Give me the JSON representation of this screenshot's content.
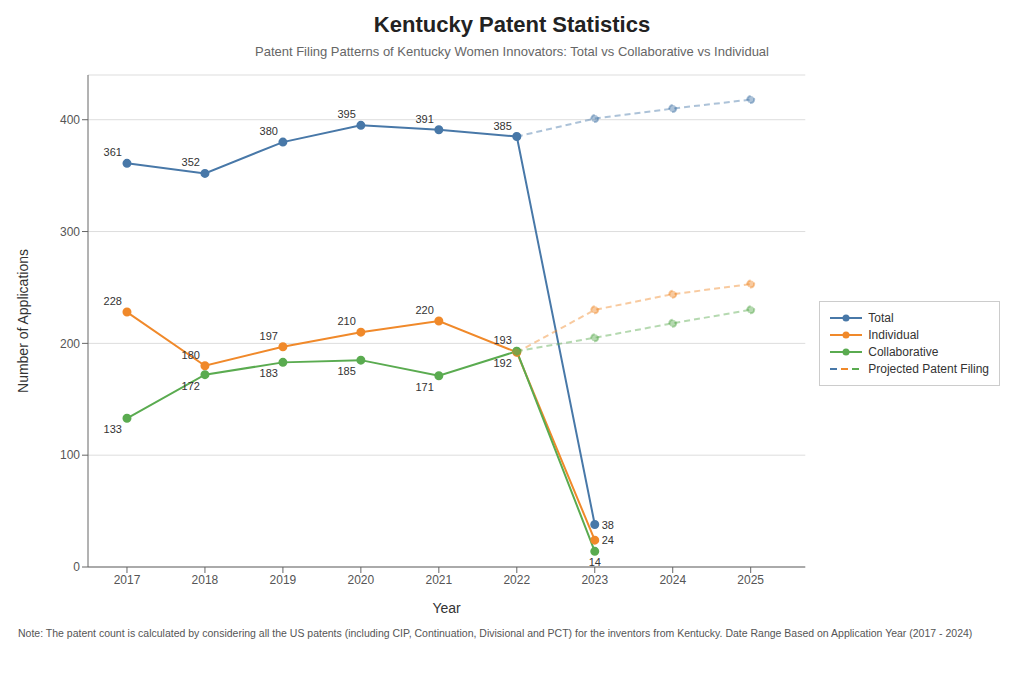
{
  "chart_data": {
    "type": "line",
    "title": "Kentucky Patent Statistics",
    "subtitle": "Patent Filing Patterns of Kentucky Women Innovators: Total vs Collaborative vs Individual",
    "xlabel": "Year",
    "ylabel": "Number of Applications",
    "footnote": "Note: The patent count is calculated by considering all the US patents (including CIP, Continuation, Divisional and PCT) for the inventors from Kentucky. Date Range Based on Application Year (2017 - 2024)",
    "xlim": [
      2016.5,
      2025.7
    ],
    "xticks": [
      2017,
      2018,
      2019,
      2020,
      2021,
      2022,
      2023,
      2024,
      2025
    ],
    "ylim": [
      0,
      440
    ],
    "yticks": [
      0,
      100,
      200,
      300,
      400
    ],
    "grid": "y",
    "legend": "right",
    "series": [
      {
        "name": "Total",
        "color": "#4878a8",
        "marker": "circle",
        "line_style": "solid",
        "data_labels": true,
        "x": [
          2017,
          2018,
          2019,
          2020,
          2021,
          2022,
          2023
        ],
        "values": [
          361,
          352,
          380,
          395,
          391,
          385,
          38
        ]
      },
      {
        "name": "Individual",
        "color": "#f0892a",
        "marker": "circle",
        "line_style": "solid",
        "data_labels": true,
        "x": [
          2017,
          2018,
          2019,
          2020,
          2021,
          2022,
          2023
        ],
        "values": [
          228,
          180,
          197,
          210,
          220,
          192,
          24
        ]
      },
      {
        "name": "Collaborative",
        "color": "#5aab50",
        "marker": "circle",
        "line_style": "solid",
        "data_labels": true,
        "x": [
          2017,
          2018,
          2019,
          2020,
          2021,
          2022,
          2023
        ],
        "values": [
          133,
          172,
          183,
          185,
          171,
          193,
          14
        ]
      },
      {
        "name": "Projected Patent Filing",
        "color": "#4878a8",
        "marker": "circle",
        "line_style": "dashed",
        "data_labels": false,
        "x": [
          2022,
          2023,
          2024,
          2025
        ],
        "values": [
          385,
          401,
          410,
          418
        ]
      },
      {
        "name": "Projected Patent Filing",
        "color": "#f0892a",
        "marker": "circle",
        "line_style": "dashed",
        "data_labels": false,
        "x": [
          2022,
          2023,
          2024,
          2025
        ],
        "values": [
          192,
          230,
          244,
          253
        ]
      },
      {
        "name": "Projected Patent Filing",
        "color": "#5aab50",
        "marker": "circle",
        "line_style": "dashed",
        "data_labels": false,
        "x": [
          2022,
          2023,
          2024,
          2025
        ],
        "values": [
          193,
          205,
          218,
          230
        ]
      }
    ]
  }
}
